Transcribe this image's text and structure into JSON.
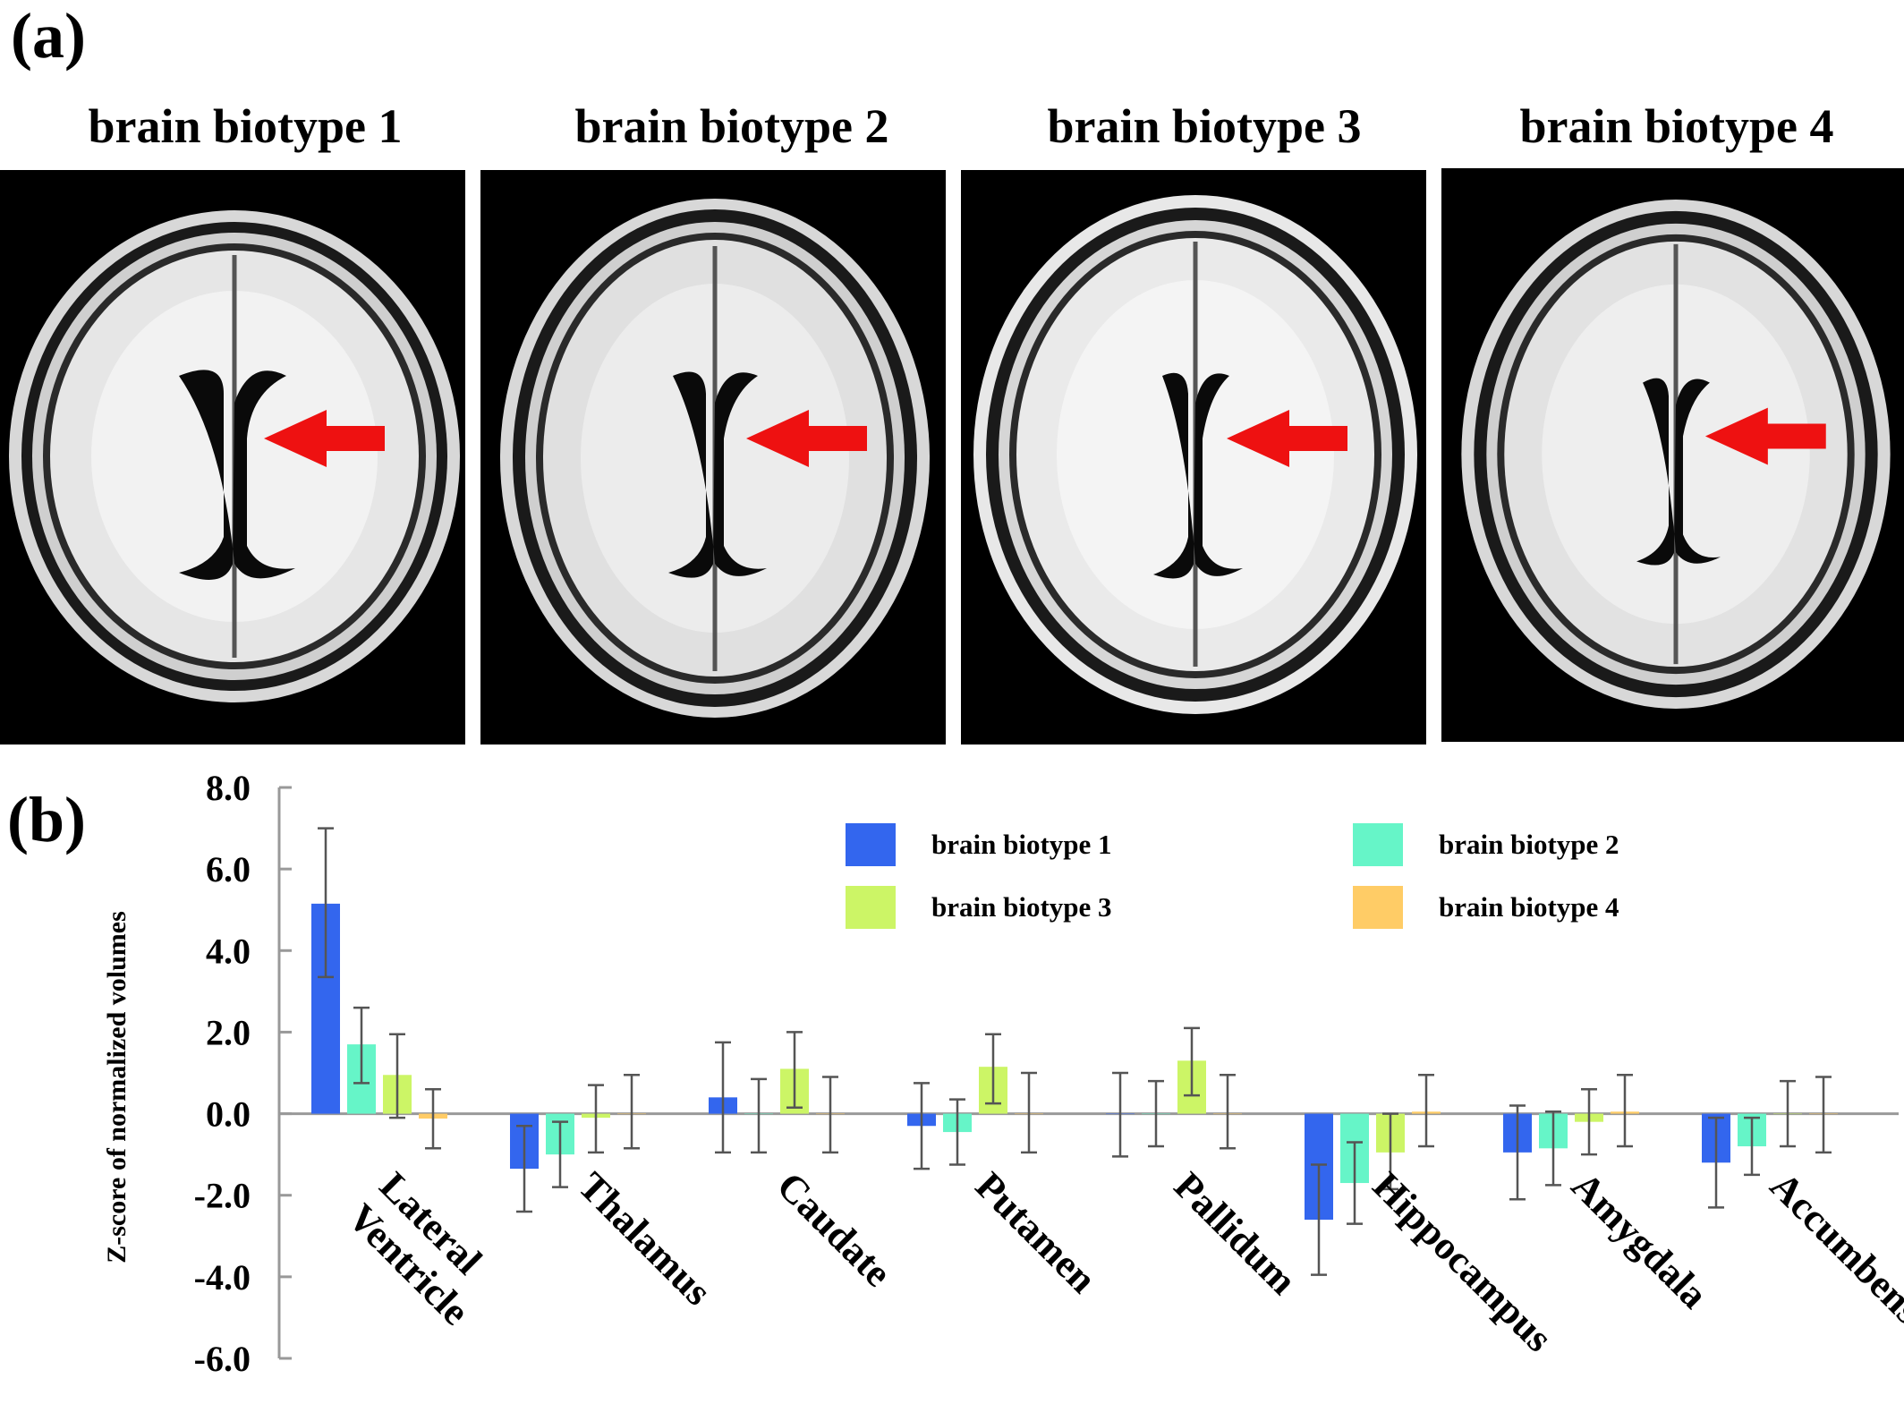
{
  "panels": {
    "a_label": "(a)",
    "b_label": "(b)"
  },
  "biotype_titles": [
    "brain biotype 1",
    "brain biotype 2",
    "brain biotype 3",
    "brain biotype 4"
  ],
  "colors": {
    "biotype1": "#3366ee",
    "biotype2": "#66f5c8",
    "biotype3": "#ccf566",
    "biotype4": "#ffcc66",
    "arrow": "#ee1111",
    "zero_line": "#999999",
    "error_bar": "#555555"
  },
  "chart_data": {
    "type": "bar",
    "ylabel": "Z-score of normalized volumes",
    "ylim": [
      -6.0,
      8.0
    ],
    "yticks": [
      "8.0",
      "6.0",
      "4.0",
      "2.0",
      "0.0",
      "-2.0",
      "-4.0",
      "-6.0"
    ],
    "categories": [
      "Lateral Ventricle",
      "Thalamus",
      "Caudate",
      "Putamen",
      "Pallidum",
      "Hippocampus",
      "Amygdala",
      "Accumbens"
    ],
    "legend_placement": "top-right",
    "series": [
      {
        "name": "brain biotype 1",
        "values": [
          5.15,
          -1.35,
          0.4,
          -0.3,
          0.0,
          -2.6,
          -0.95,
          -1.2
        ],
        "err_low": [
          3.35,
          -2.4,
          -0.95,
          -1.35,
          -1.05,
          -3.95,
          -2.1,
          -2.3
        ],
        "err_high": [
          7.0,
          -0.3,
          1.75,
          0.75,
          1.0,
          -1.25,
          0.2,
          -0.1
        ]
      },
      {
        "name": "brain biotype 2",
        "values": [
          1.7,
          -1.0,
          0.0,
          -0.45,
          0.0,
          -1.7,
          -0.85,
          -0.8
        ],
        "err_low": [
          0.75,
          -1.8,
          -0.95,
          -1.25,
          -0.8,
          -2.7,
          -1.75,
          -1.5
        ],
        "err_high": [
          2.6,
          -0.2,
          0.85,
          0.35,
          0.8,
          -0.7,
          0.05,
          -0.1
        ]
      },
      {
        "name": "brain biotype 3",
        "values": [
          0.95,
          -0.1,
          1.1,
          1.15,
          1.3,
          -0.95,
          -0.2,
          0.0
        ],
        "err_low": [
          -0.1,
          -0.95,
          0.15,
          0.25,
          0.45,
          -1.85,
          -1.0,
          -0.8
        ],
        "err_high": [
          1.95,
          0.7,
          2.0,
          1.95,
          2.1,
          0.0,
          0.6,
          0.8
        ]
      },
      {
        "name": "brain biotype 4",
        "values": [
          -0.12,
          0.0,
          0.0,
          0.0,
          0.0,
          0.05,
          0.05,
          0.0
        ],
        "err_low": [
          -0.85,
          -0.85,
          -0.95,
          -0.95,
          -0.85,
          -0.8,
          -0.8,
          -0.95
        ],
        "err_high": [
          0.6,
          0.95,
          0.9,
          1.0,
          0.95,
          0.95,
          0.95,
          0.9
        ]
      }
    ]
  }
}
